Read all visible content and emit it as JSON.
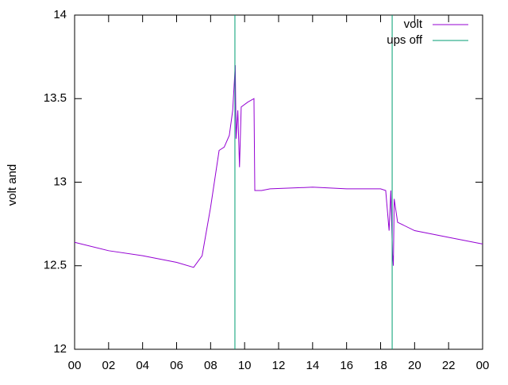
{
  "chart_data": {
    "type": "line",
    "ylabel": "volt and",
    "xlim": [
      0,
      24
    ],
    "xticks": [
      {
        "value": 0,
        "label": "00"
      },
      {
        "value": 2,
        "label": "02"
      },
      {
        "value": 4,
        "label": "04"
      },
      {
        "value": 6,
        "label": "06"
      },
      {
        "value": 8,
        "label": "08"
      },
      10,
      12,
      14,
      16,
      18,
      20,
      22,
      {
        "value": 24,
        "label": "00"
      }
    ],
    "ylim": [
      12,
      14
    ],
    "yticks": [
      12,
      12.5,
      13,
      13.5,
      14
    ],
    "legend": "top-right",
    "series": [
      {
        "name": "volt",
        "color": "#9400d3",
        "x": [
          0,
          2,
          4,
          6,
          7,
          7.5,
          8,
          8.5,
          8.8,
          9.1,
          9.3,
          9.45,
          9.5,
          9.6,
          9.7,
          9.8,
          10.2,
          10.55,
          10.6,
          11,
          11.5,
          14,
          16,
          18,
          18.3,
          18.5,
          18.6,
          18.7,
          18.75,
          18.8,
          19,
          20,
          22,
          24
        ],
        "values": [
          12.64,
          12.59,
          12.56,
          12.52,
          12.49,
          12.56,
          12.85,
          13.19,
          13.21,
          13.28,
          13.43,
          13.7,
          13.26,
          13.43,
          13.09,
          13.45,
          13.48,
          13.5,
          12.95,
          12.95,
          12.96,
          12.97,
          12.96,
          12.96,
          12.95,
          12.71,
          12.95,
          12.57,
          12.5,
          12.9,
          12.76,
          12.71,
          12.67,
          12.63
        ]
      },
      {
        "name": "ups off",
        "color": "#009e73",
        "x": [
          9.43,
          9.43,
          9.43,
          18.68,
          18.68
        ],
        "values": [
          12,
          14,
          null,
          12,
          14
        ]
      }
    ]
  }
}
